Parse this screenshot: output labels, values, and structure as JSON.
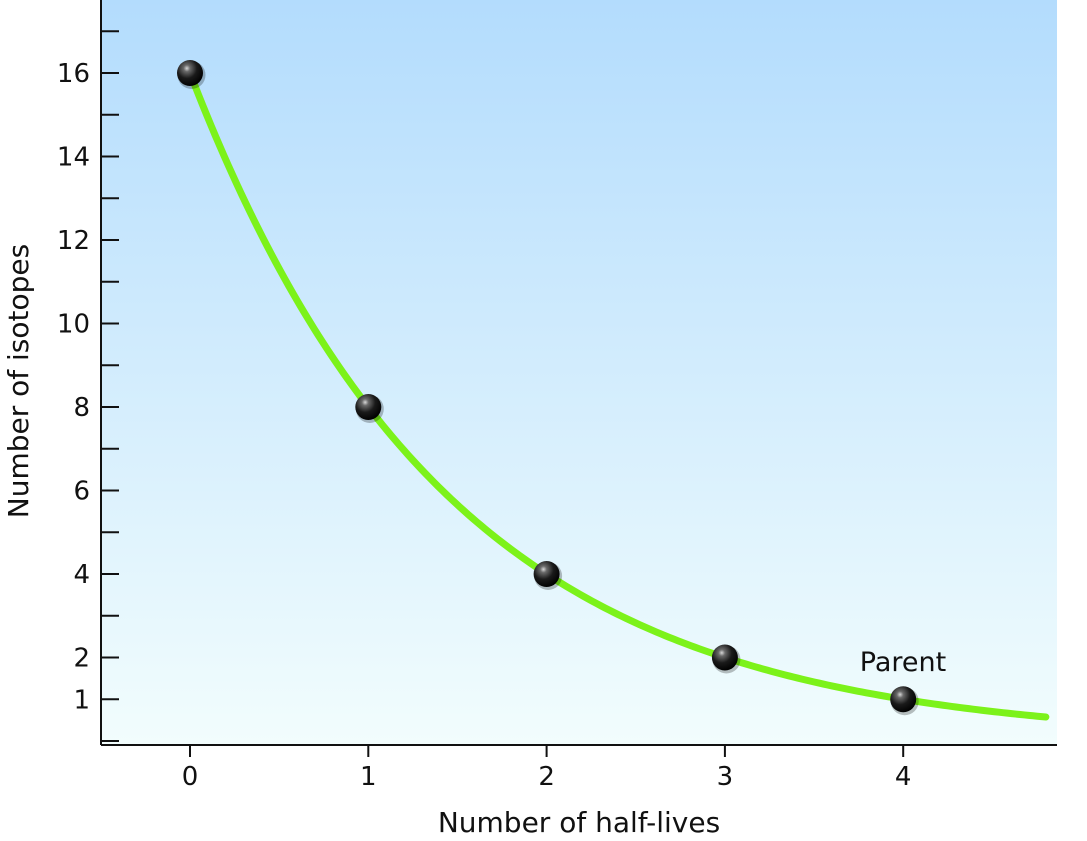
{
  "chart_data": {
    "type": "line",
    "xlabel": "Number of half-lives",
    "ylabel": "Number of isotopes",
    "xlim": [
      -0.5,
      4.8
    ],
    "ylim": [
      -1,
      17.3
    ],
    "x_ticks": [
      "0",
      "1",
      "2",
      "3",
      "4"
    ],
    "y_tick_labels": [
      "1",
      "2",
      "4",
      "6",
      "8",
      "10",
      "12",
      "14",
      "16"
    ],
    "series": [
      {
        "name": "Parent",
        "color": "#7cf21a",
        "x": [
          0,
          1,
          2,
          3,
          4
        ],
        "y": [
          16,
          8,
          4,
          2,
          1
        ],
        "curve": "exponential decay, extends to x = 4.8"
      }
    ],
    "annotations": [
      {
        "text": "Parent",
        "x": 4,
        "y": 1
      }
    ],
    "background": {
      "top": "#b3dcfd",
      "bottom": "#f2fdfd"
    },
    "marker_color": "#111111",
    "grid": false
  }
}
